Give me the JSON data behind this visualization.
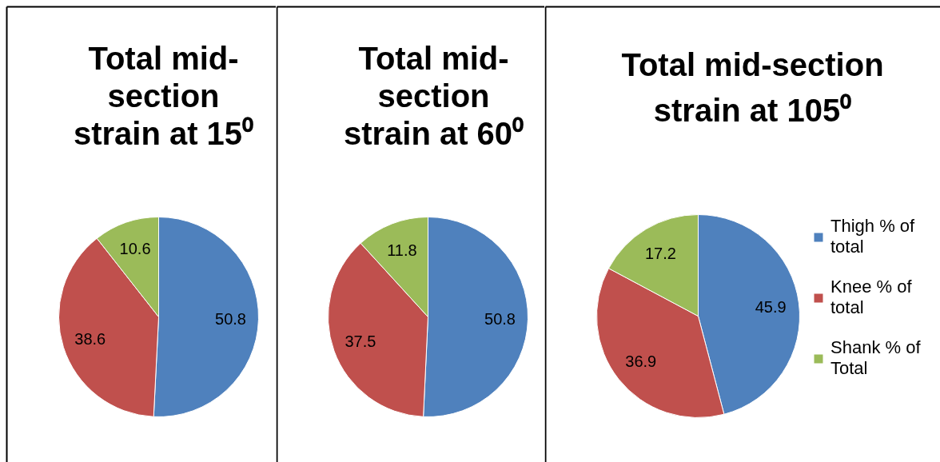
{
  "chart_data": [
    {
      "type": "pie",
      "title": "Total mid-section strain at 15⁰",
      "categories": [
        null,
        null,
        null
      ],
      "values": [
        50.8,
        38.6,
        10.6
      ],
      "colors": [
        "#4f81bd",
        "#c0504d",
        "#9bbb59"
      ],
      "data_labels": true
    },
    {
      "type": "pie",
      "title": "Total mid-section strain at 60⁰",
      "categories": [
        null,
        null,
        null
      ],
      "values": [
        50.8,
        37.5,
        11.8
      ],
      "colors": [
        "#4f81bd",
        "#c0504d",
        "#9bbb59"
      ],
      "data_labels": true
    },
    {
      "type": "pie",
      "title": "Total mid-section strain at 105⁰",
      "categories": [
        "Thigh % of total",
        "Knee % of total",
        "Shank % of Total"
      ],
      "values": [
        45.9,
        36.9,
        17.2
      ],
      "colors": [
        "#4f81bd",
        "#c0504d",
        "#9bbb59"
      ],
      "data_labels": true,
      "legend": "right"
    }
  ]
}
